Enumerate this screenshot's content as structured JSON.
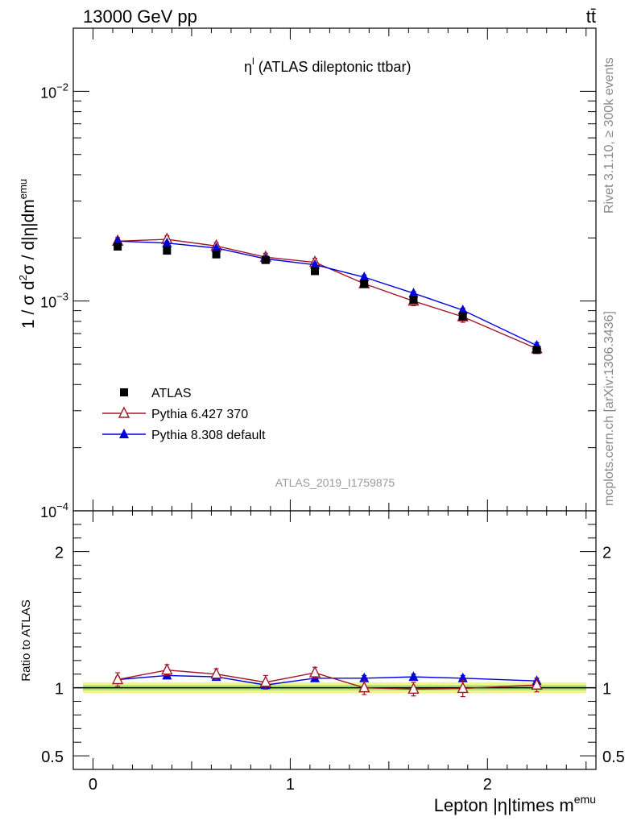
{
  "header": {
    "left": "13000 GeV pp",
    "right": "tt̄"
  },
  "side_labels": {
    "rivet": "Rivet 3.1.10, ≥ 300k events",
    "mcplots": "mcplots.cern.ch [arXiv:1306.3436]"
  },
  "chart_data": [
    {
      "type": "scatter",
      "panel": "main",
      "title": "ηl (ATLAS dileptonic ttbar)",
      "title_parts": {
        "base": "η",
        "sup": "l",
        "rest": " (ATLAS dileptonic ttbar)"
      },
      "ylabel": "1 / σ  d²σ / d|η|dmᵉᵐᵘ",
      "ylabel_parts": {
        "a": "1 / σ  d",
        "sup1": "2",
        "b": "σ / d|η|dm",
        "sup2": "emu"
      },
      "yscale": "log",
      "ylim": [
        0.0001,
        0.02
      ],
      "xlim": [
        -0.1,
        2.55
      ],
      "y_tick_labels": [
        {
          "value": 0.01,
          "base": "10",
          "exp": "−2"
        },
        {
          "value": 0.001,
          "base": "10",
          "exp": "−3"
        },
        {
          "value": 0.0001,
          "base": "10",
          "exp": "−4"
        }
      ],
      "watermark": "ATLAS_2019_I1759875",
      "legend_position": "lower-left",
      "series": [
        {
          "name": "ATLAS",
          "color": "#000000",
          "marker": "square-filled",
          "x": [
            0.125,
            0.375,
            0.625,
            0.875,
            1.125,
            1.375,
            1.625,
            1.875,
            2.25
          ],
          "y": [
            0.00182,
            0.00174,
            0.00167,
            0.00157,
            0.00139,
            0.00121,
            0.00101,
            0.000846,
            0.000585
          ]
        },
        {
          "name": "Pythia 6.427 370",
          "color": "#a01728",
          "marker": "triangle-open",
          "x": [
            0.125,
            0.375,
            0.625,
            0.875,
            1.125,
            1.375,
            1.625,
            1.875,
            2.25
          ],
          "y": [
            0.00193,
            0.00197,
            0.00183,
            0.00162,
            0.00153,
            0.00121,
            0.001,
            0.000842,
            0.000593
          ],
          "yerr": [
            8e-05,
            8e-05,
            7e-05,
            7e-05,
            7e-05,
            5e-05,
            5e-05,
            5e-05,
            3e-05
          ]
        },
        {
          "name": "Pythia 8.308 default",
          "color": "#0000dd",
          "marker": "triangle-filled",
          "x": [
            0.125,
            0.375,
            0.625,
            0.875,
            1.125,
            1.375,
            1.625,
            1.875,
            2.25
          ],
          "y": [
            0.00193,
            0.00189,
            0.00179,
            0.00159,
            0.00149,
            0.0013,
            0.00109,
            0.000905,
            0.000614
          ],
          "yerr": [
            3e-05,
            3e-05,
            3e-05,
            3e-05,
            3e-05,
            3e-05,
            2e-05,
            2e-05,
            2e-05
          ]
        }
      ]
    },
    {
      "type": "scatter",
      "panel": "ratio",
      "ylabel": "Ratio to ATLAS",
      "xlabel": "Lepton |η|times mᵉᵐᵘ",
      "xlabel_parts": {
        "a": "Lepton |η|times m",
        "sup": "emu"
      },
      "ylim": [
        0.4,
        2.3
      ],
      "xlim": [
        -0.1,
        2.55
      ],
      "x_ticks": [
        0,
        1,
        2
      ],
      "x_tick_labels": [
        "0",
        "1",
        "2"
      ],
      "y_ticks": [
        0.5,
        1,
        2
      ],
      "y_tick_labels": [
        "0.5",
        "1",
        "2"
      ],
      "band": {
        "yellow": [
          0.96,
          1.04
        ],
        "green": [
          0.98,
          1.02
        ]
      },
      "series": [
        {
          "name": "Pythia 6.427 370",
          "color": "#a01728",
          "marker": "triangle-open",
          "x": [
            0.125,
            0.375,
            0.625,
            0.875,
            1.125,
            1.375,
            1.625,
            1.875,
            2.25
          ],
          "y": [
            1.06,
            1.13,
            1.1,
            1.04,
            1.11,
            1.0,
            0.99,
            0.995,
            1.02
          ],
          "yerr": [
            0.05,
            0.04,
            0.04,
            0.05,
            0.04,
            0.05,
            0.05,
            0.06,
            0.05
          ]
        },
        {
          "name": "Pythia 8.308 default",
          "color": "#0000dd",
          "marker": "triangle-filled",
          "x": [
            0.125,
            0.375,
            0.625,
            0.875,
            1.125,
            1.375,
            1.625,
            1.875,
            2.25
          ],
          "y": [
            1.06,
            1.09,
            1.08,
            1.02,
            1.07,
            1.07,
            1.08,
            1.07,
            1.05
          ],
          "yerr": [
            0.02,
            0.02,
            0.02,
            0.02,
            0.02,
            0.02,
            0.02,
            0.02,
            0.02
          ]
        }
      ]
    }
  ]
}
